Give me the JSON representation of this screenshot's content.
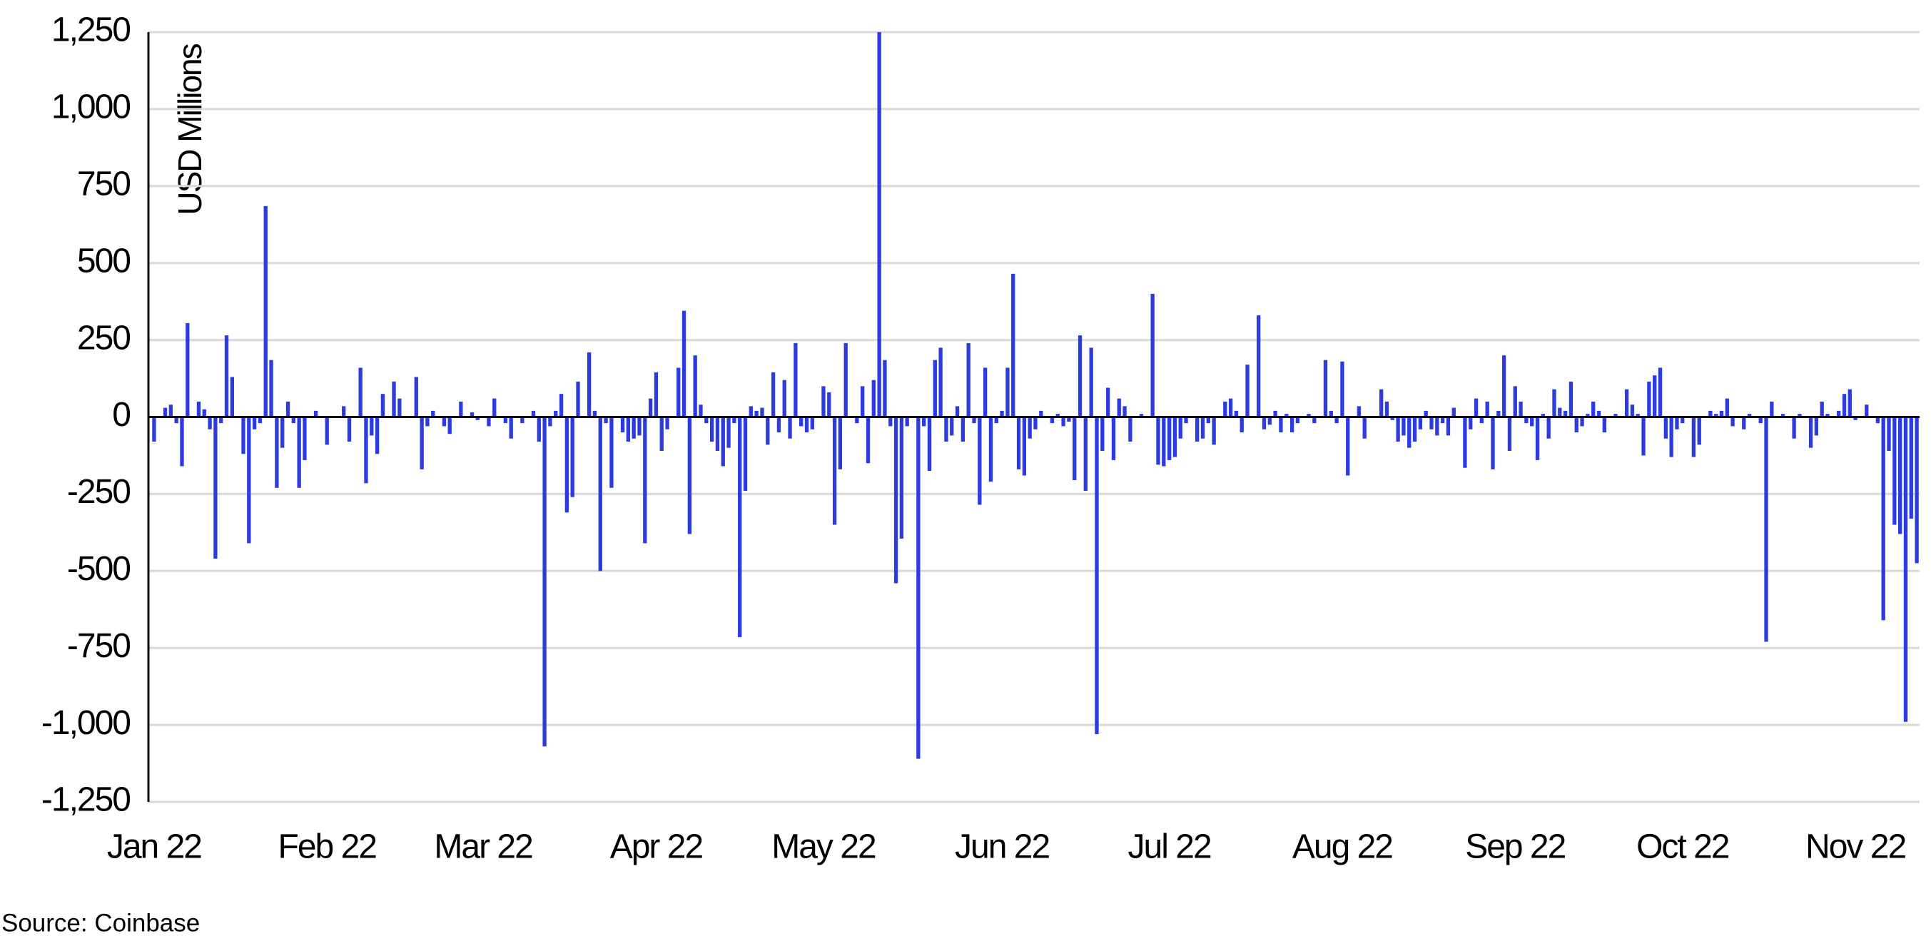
{
  "chart_data": {
    "type": "bar",
    "y_label": "USD Millions",
    "source": "Source: Coinbase",
    "color": "#2b3be0",
    "grid": true,
    "ylim": [
      -1250,
      1250
    ],
    "yticks": [
      {
        "value": 1250,
        "label": "1,250"
      },
      {
        "value": 1000,
        "label": "1,000"
      },
      750,
      500,
      250,
      0,
      -250,
      -500,
      -750,
      {
        "value": -1000,
        "label": "-1,000"
      },
      {
        "value": -1250,
        "label": "-1,250"
      }
    ],
    "categories": [
      "Jan 22",
      null,
      null,
      null,
      null,
      null,
      null,
      null,
      null,
      null,
      null,
      null,
      null,
      null,
      null,
      null,
      null,
      null,
      null,
      null,
      null,
      null,
      null,
      null,
      null,
      null,
      null,
      null,
      null,
      null,
      null,
      "Feb 22",
      null,
      null,
      null,
      null,
      null,
      null,
      null,
      null,
      null,
      null,
      null,
      null,
      null,
      null,
      null,
      null,
      null,
      null,
      null,
      null,
      null,
      null,
      null,
      null,
      null,
      null,
      null,
      "Mar 22",
      null,
      null,
      null,
      null,
      null,
      null,
      null,
      null,
      null,
      null,
      null,
      null,
      null,
      null,
      null,
      null,
      null,
      null,
      null,
      null,
      null,
      null,
      null,
      null,
      null,
      null,
      null,
      null,
      null,
      null,
      "Apr 22",
      null,
      null,
      null,
      null,
      null,
      null,
      null,
      null,
      null,
      null,
      null,
      null,
      null,
      null,
      null,
      null,
      null,
      null,
      null,
      null,
      null,
      null,
      null,
      null,
      null,
      null,
      null,
      null,
      null,
      "May 22",
      null,
      null,
      null,
      null,
      null,
      null,
      null,
      null,
      null,
      null,
      null,
      null,
      null,
      null,
      null,
      null,
      null,
      null,
      null,
      null,
      null,
      null,
      null,
      null,
      null,
      null,
      null,
      null,
      null,
      null,
      null,
      "Jun 22",
      null,
      null,
      null,
      null,
      null,
      null,
      null,
      null,
      null,
      null,
      null,
      null,
      null,
      null,
      null,
      null,
      null,
      null,
      null,
      null,
      null,
      null,
      null,
      null,
      null,
      null,
      null,
      null,
      null,
      "Jul 22",
      null,
      null,
      null,
      null,
      null,
      null,
      null,
      null,
      null,
      null,
      null,
      null,
      null,
      null,
      null,
      null,
      null,
      null,
      null,
      null,
      null,
      null,
      null,
      null,
      null,
      null,
      null,
      null,
      null,
      null,
      "Aug 22",
      null,
      null,
      null,
      null,
      null,
      null,
      null,
      null,
      null,
      null,
      null,
      null,
      null,
      null,
      null,
      null,
      null,
      null,
      null,
      null,
      null,
      null,
      null,
      null,
      null,
      null,
      null,
      null,
      null,
      null,
      "Sep 22",
      null,
      null,
      null,
      null,
      null,
      null,
      null,
      null,
      null,
      null,
      null,
      null,
      null,
      null,
      null,
      null,
      null,
      null,
      null,
      null,
      null,
      null,
      null,
      null,
      null,
      null,
      null,
      null,
      null,
      "Oct 22",
      null,
      null,
      null,
      null,
      null,
      null,
      null,
      null,
      null,
      null,
      null,
      null,
      null,
      null,
      null,
      null,
      null,
      null,
      null,
      null,
      null,
      null,
      null,
      null,
      null,
      null,
      null,
      null,
      null,
      null,
      "Nov 22",
      null,
      null,
      null,
      null,
      null,
      null,
      null,
      null,
      null,
      null,
      null
    ],
    "values": [
      -80,
      0,
      30,
      40,
      -20,
      -160,
      305,
      0,
      50,
      25,
      -40,
      -460,
      -20,
      265,
      130,
      0,
      -120,
      -410,
      -40,
      -20,
      685,
      185,
      -230,
      -100,
      50,
      -20,
      -230,
      -140,
      0,
      20,
      0,
      -90,
      0,
      0,
      35,
      -80,
      0,
      160,
      -215,
      -60,
      -120,
      75,
      0,
      115,
      60,
      0,
      0,
      130,
      -170,
      -30,
      20,
      0,
      -30,
      -55,
      0,
      50,
      0,
      15,
      -10,
      0,
      -30,
      60,
      0,
      -20,
      -70,
      0,
      -20,
      0,
      20,
      -80,
      -1070,
      -30,
      20,
      75,
      -310,
      -260,
      115,
      0,
      210,
      20,
      -500,
      -20,
      -230,
      0,
      -50,
      -80,
      -70,
      -60,
      -410,
      60,
      145,
      -110,
      -40,
      0,
      160,
      345,
      -380,
      200,
      40,
      -20,
      -80,
      -110,
      -160,
      -100,
      -20,
      -715,
      -240,
      35,
      20,
      30,
      -90,
      145,
      -50,
      120,
      -70,
      240,
      -30,
      -50,
      -40,
      0,
      100,
      80,
      -350,
      -170,
      240,
      0,
      -20,
      100,
      -150,
      120,
      1250,
      185,
      -30,
      -540,
      -395,
      -30,
      0,
      -1110,
      -30,
      -175,
      185,
      225,
      -80,
      -60,
      35,
      -80,
      240,
      -20,
      -285,
      160,
      -210,
      -20,
      20,
      160,
      465,
      -170,
      -190,
      -70,
      -40,
      20,
      0,
      -20,
      10,
      -30,
      -15,
      -205,
      265,
      -240,
      225,
      -1030,
      -110,
      95,
      -140,
      60,
      35,
      -80,
      0,
      10,
      0,
      400,
      -155,
      -160,
      -140,
      -130,
      -70,
      -20,
      0,
      -80,
      -70,
      -20,
      -90,
      0,
      50,
      60,
      20,
      -50,
      170,
      0,
      330,
      -40,
      -25,
      20,
      -50,
      10,
      -50,
      -20,
      0,
      10,
      -20,
      0,
      185,
      20,
      -20,
      180,
      -190,
      0,
      35,
      -70,
      0,
      0,
      90,
      50,
      -10,
      -80,
      -60,
      -100,
      -80,
      -40,
      20,
      -40,
      -60,
      -20,
      -60,
      30,
      0,
      -165,
      -40,
      60,
      -20,
      50,
      -170,
      20,
      200,
      -110,
      100,
      50,
      -20,
      -30,
      -140,
      10,
      -70,
      90,
      30,
      20,
      115,
      -50,
      -30,
      10,
      50,
      20,
      -50,
      0,
      10,
      0,
      90,
      40,
      10,
      -125,
      115,
      135,
      160,
      -70,
      -130,
      -40,
      -20,
      0,
      -130,
      -90,
      0,
      20,
      10,
      20,
      60,
      -30,
      0,
      -40,
      10,
      0,
      -20,
      -730,
      50,
      0,
      10,
      0,
      -70,
      10,
      0,
      -100,
      -60,
      50,
      10,
      0,
      20,
      75,
      90,
      -10,
      0,
      40,
      0,
      -20,
      -660,
      -110,
      -350,
      -380,
      -990,
      -330,
      -475
    ]
  }
}
